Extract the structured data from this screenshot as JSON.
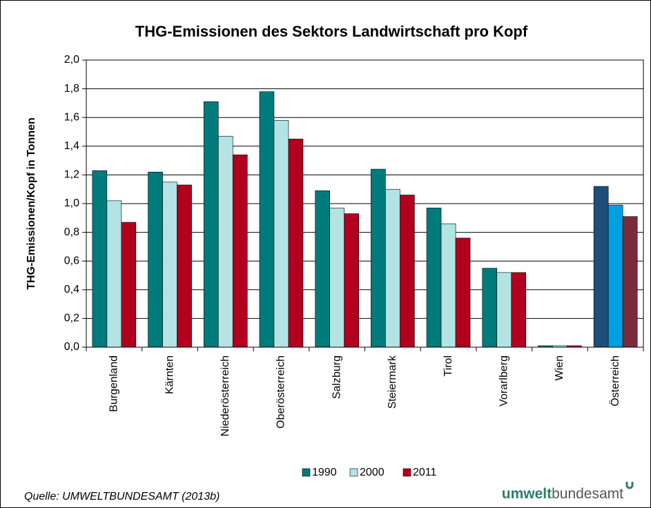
{
  "chart_data": {
    "type": "bar",
    "title": "THG-Emissionen des Sektors Landwirtschaft pro Kopf",
    "y_label": "THG-Emissionen/Kopf in Tonnen",
    "categories": [
      "Burgenland",
      "Kärnten",
      "Niederösterreich",
      "Oberösterreich",
      "Salzburg",
      "Steiermark",
      "Tirol",
      "Vorarlberg",
      "Wien",
      "Österreich"
    ],
    "series": [
      {
        "name": "1990",
        "color": "#007b7b",
        "colors": [
          "#007b7b",
          "#007b7b",
          "#007b7b",
          "#007b7b",
          "#007b7b",
          "#007b7b",
          "#007b7b",
          "#007b7b",
          "#007b7b",
          "#1f4e79"
        ],
        "values": [
          1.23,
          1.22,
          1.71,
          1.78,
          1.09,
          1.24,
          0.97,
          0.55,
          0.01,
          1.12
        ]
      },
      {
        "name": "2000",
        "color": "#b3e3e3",
        "colors": [
          "#b3e3e3",
          "#b3e3e3",
          "#b3e3e3",
          "#b3e3e3",
          "#b3e3e3",
          "#b3e3e3",
          "#b3e3e3",
          "#b3e3e3",
          "#b3e3e3",
          "#00a0e0"
        ],
        "values": [
          1.02,
          1.15,
          1.47,
          1.58,
          0.97,
          1.1,
          0.86,
          0.52,
          0.01,
          0.99
        ]
      },
      {
        "name": "2011",
        "color": "#b0001e",
        "colors": [
          "#b0001e",
          "#b0001e",
          "#b0001e",
          "#b0001e",
          "#b0001e",
          "#b0001e",
          "#b0001e",
          "#b0001e",
          "#b0001e",
          "#7b2a3c"
        ],
        "values": [
          0.87,
          1.13,
          1.34,
          1.45,
          0.93,
          1.06,
          0.76,
          0.52,
          0.01,
          0.91
        ]
      }
    ],
    "ylim": [
      0,
      2
    ],
    "yticks": [
      {
        "value": 0,
        "label": "0,0"
      },
      {
        "value": 0.2,
        "label": "0,2"
      },
      {
        "value": 0.4,
        "label": "0,4"
      },
      {
        "value": 0.6,
        "label": "0,6"
      },
      {
        "value": 0.8,
        "label": "0,8"
      },
      {
        "value": 1.0,
        "label": "1,0"
      },
      {
        "value": 1.2,
        "label": "1,2"
      },
      {
        "value": 1.4,
        "label": "1,4"
      },
      {
        "value": 1.6,
        "label": "1,6"
      },
      {
        "value": 1.8,
        "label": "1,8"
      },
      {
        "value": 2.0,
        "label": "2,0"
      }
    ],
    "grid": true,
    "legend": "bottom",
    "source": "Quelle: UMWELTBUNDESAMT (2013b)",
    "logo": {
      "bold": "umwelt",
      "regular": "bundesamt"
    }
  }
}
